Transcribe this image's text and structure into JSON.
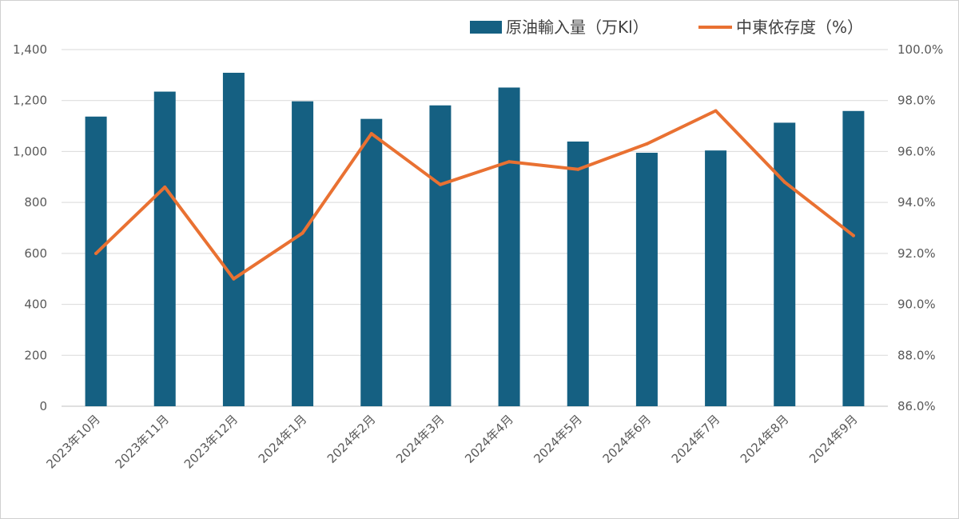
{
  "chart_data": {
    "type": "bar",
    "title": "",
    "categories": [
      "2023年10月",
      "2023年11月",
      "2023年12月",
      "2024年1月",
      "2024年2月",
      "2024年3月",
      "2024年4月",
      "2024年5月",
      "2024年6月",
      "2024年7月",
      "2024年8月",
      "2024年9月"
    ],
    "series": [
      {
        "name": "原油輸入量（万Kl）",
        "type": "bar",
        "axis": "left",
        "color": "#156082",
        "values": [
          1137,
          1235,
          1309,
          1197,
          1128,
          1181,
          1251,
          1039,
          995,
          1004,
          1113,
          1159
        ]
      },
      {
        "name": "中東依存度（%）",
        "type": "line",
        "axis": "right",
        "color": "#E97132",
        "values": [
          92.0,
          94.6,
          91.0,
          92.8,
          96.7,
          94.7,
          95.6,
          95.3,
          96.3,
          97.6,
          94.8,
          92.7
        ]
      }
    ],
    "y_left": {
      "min": 0,
      "max": 1400,
      "ticks": [
        "0",
        "200",
        "400",
        "600",
        "800",
        "1,000",
        "1,200",
        "1,400"
      ]
    },
    "y_right": {
      "min": 86.0,
      "max": 100.0,
      "ticks": [
        "86.0%",
        "88.0%",
        "90.0%",
        "92.0%",
        "94.0%",
        "96.0%",
        "98.0%",
        "100.0%"
      ]
    },
    "grid": true,
    "legend_position": "top-right"
  }
}
